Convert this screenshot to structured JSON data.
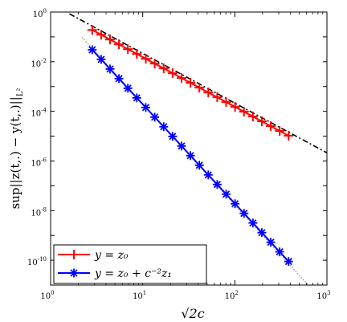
{
  "chart_data": {
    "type": "line",
    "xscale": "log",
    "yscale": "log",
    "xlim": [
      1,
      1000
    ],
    "ylim": [
      1e-11,
      1
    ],
    "xlabel": "√2c",
    "ylabel": "sup||z(t,.) − y(t,.)||",
    "ylabel_sub": "L²",
    "x_ticks": [
      {
        "base": "10",
        "exp": "0",
        "value": 1
      },
      {
        "base": "10",
        "exp": "1",
        "value": 10
      },
      {
        "base": "10",
        "exp": "2",
        "value": 100
      },
      {
        "base": "10",
        "exp": "3",
        "value": 1000
      }
    ],
    "y_ticks": [
      {
        "base": "10",
        "exp": "0",
        "value": 1
      },
      {
        "base": "10",
        "exp": "-2",
        "value": 0.01
      },
      {
        "base": "10",
        "exp": "-4",
        "value": 0.0001
      },
      {
        "base": "10",
        "exp": "-6",
        "value": 1e-06
      },
      {
        "base": "10",
        "exp": "-8",
        "value": 1e-08
      },
      {
        "base": "10",
        "exp": "-10",
        "value": 1e-10
      }
    ],
    "legend_placement": "bottom-left",
    "series": [
      {
        "name": "y = z₀",
        "color": "#ff0000",
        "marker": "plus",
        "x": [
          2.83,
          3.54,
          4.42,
          5.52,
          6.9,
          8.63,
          10.8,
          13.5,
          16.9,
          21.1,
          26.4,
          33.0,
          41.2,
          51.5,
          64.4,
          80.5,
          100.6,
          125.8,
          157.2,
          196.5,
          245.6,
          307.0,
          383.8
        ],
        "y": [
          0.19,
          0.122,
          0.0781,
          0.05,
          0.032,
          0.0205,
          0.0131,
          0.00838,
          0.00537,
          0.00343,
          0.0022,
          0.00141,
          0.0009,
          0.000576,
          0.000369,
          0.000236,
          0.000151,
          9.67e-05,
          6.19e-05,
          3.96e-05,
          2.53e-05,
          1.62e-05,
          1.04e-05
        ]
      },
      {
        "name": "y = z₀ + c⁻²z₁",
        "color": "#0000ff",
        "marker": "asterisk",
        "x": [
          2.83,
          3.54,
          4.42,
          5.52,
          6.9,
          8.63,
          10.8,
          13.5,
          16.9,
          21.1,
          26.4,
          33.0,
          41.2,
          51.5,
          64.4,
          80.5,
          100.6,
          125.8,
          157.2,
          196.5,
          245.6,
          307.0,
          383.8
        ],
        "y": [
          0.0302,
          0.0124,
          0.00507,
          0.00208,
          0.00085,
          0.000348,
          0.000143,
          5.83e-05,
          2.39e-05,
          9.78e-06,
          4e-06,
          1.64e-06,
          6.72e-07,
          2.75e-07,
          1.13e-07,
          4.61e-08,
          1.89e-08,
          7.73e-09,
          3.17e-09,
          1.3e-09,
          5.31e-10,
          2.18e-10,
          8.91e-11
        ]
      }
    ],
    "reference_lines": [
      {
        "style": "dash-dot",
        "color": "#000000",
        "x": [
          1.6,
          1000
        ],
        "y": [
          0.85,
          2.13e-06
        ]
      },
      {
        "style": "dotted",
        "color": "#808080",
        "x": [
          2.2,
          1000
        ],
        "y": [
          0.095,
          1.48e-12
        ]
      }
    ]
  }
}
